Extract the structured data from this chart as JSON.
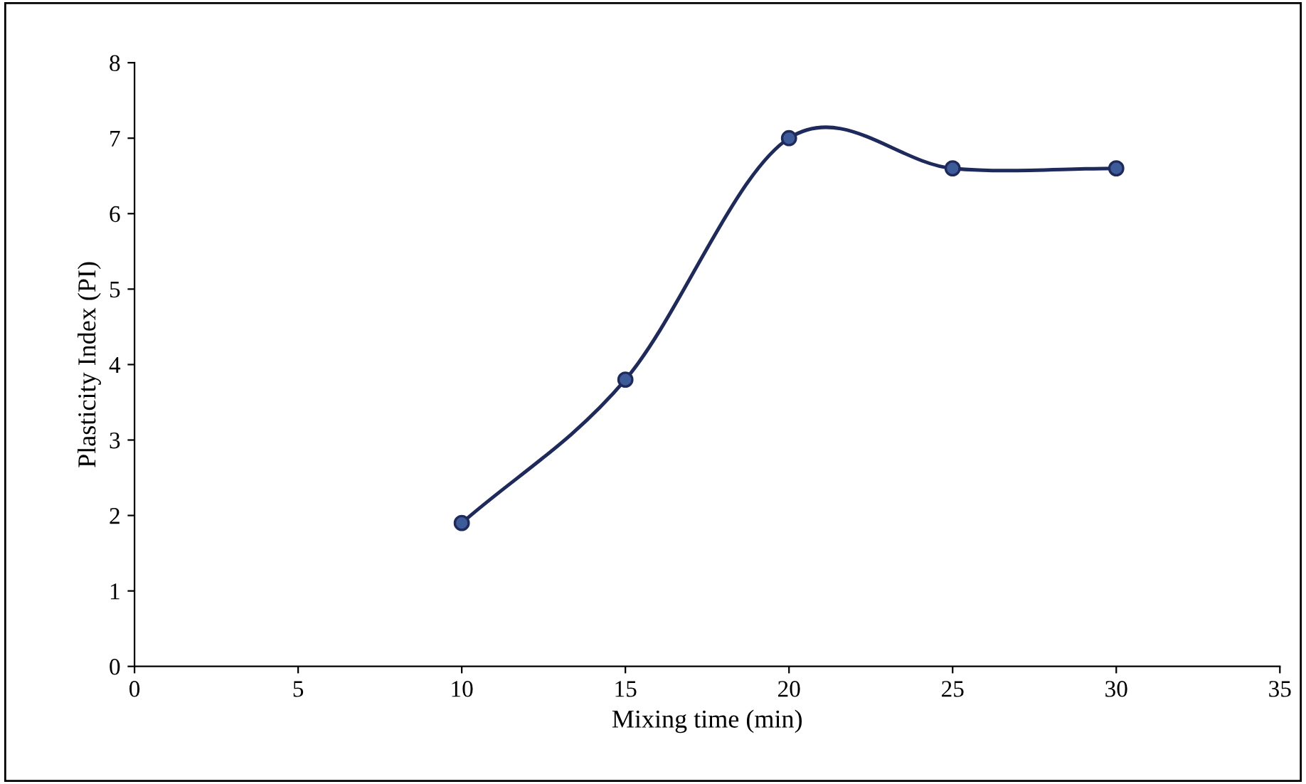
{
  "chart_data": {
    "type": "line",
    "xlabel": "Mixing time (min)",
    "ylabel": "Plasticity Index (PI)",
    "x": [
      10,
      15,
      20,
      25,
      30
    ],
    "series": [
      {
        "color": "#1f2a5c",
        "values": [
          1.9,
          3.8,
          7.0,
          6.6,
          6.6
        ]
      }
    ],
    "xlim": [
      0,
      35
    ],
    "xticks": [
      0,
      5,
      10,
      15,
      20,
      25,
      30,
      35
    ],
    "ylim": [
      0,
      8
    ],
    "yticks": [
      0,
      1,
      2,
      3,
      4,
      5,
      6,
      7,
      8
    ],
    "grid": false,
    "legend": false,
    "marker": "circle",
    "line_style": "solid"
  }
}
